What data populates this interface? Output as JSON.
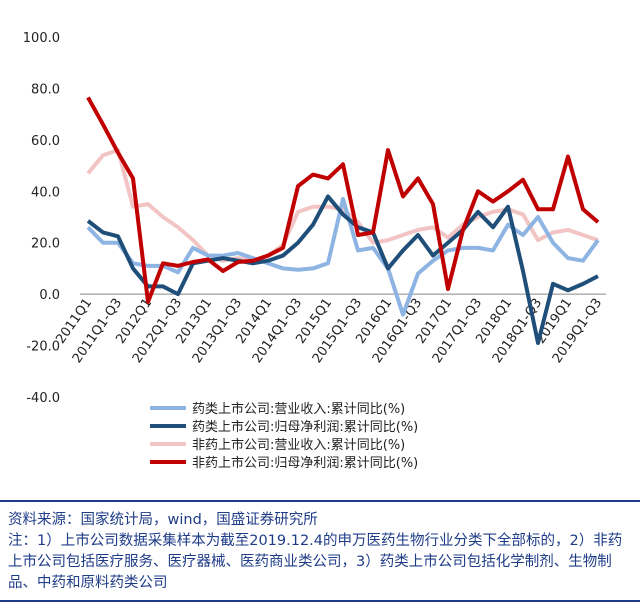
{
  "chart_data": {
    "type": "line",
    "categories": [
      "2011Q1",
      null,
      "2011Q1-Q3",
      null,
      "2012Q1",
      null,
      "2012Q1-Q3",
      null,
      "2013Q1",
      null,
      "2013Q1-Q3",
      null,
      "2014Q1",
      null,
      "2014Q1-Q3",
      null,
      "2015Q1",
      null,
      "2015Q1-Q3",
      null,
      "2016Q1",
      null,
      "2016Q1-Q3",
      null,
      "2017Q1",
      null,
      "2017Q1-Q3",
      null,
      "2018Q1",
      null,
      "2018Q1-Q3",
      null,
      "2019Q1",
      null,
      "2019Q1-Q3"
    ],
    "series": [
      {
        "name": "非药上市公司:营业收入:累计同比(%)",
        "color": "#f2c4c4",
        "values": [
          47,
          54,
          56,
          34,
          35,
          30,
          26,
          21,
          15,
          13,
          14,
          13,
          15,
          19,
          32,
          34,
          34,
          33,
          28,
          20,
          21,
          23,
          25,
          26,
          22,
          27,
          30,
          32,
          33,
          31,
          21,
          24,
          25,
          23,
          21
        ]
      },
      {
        "name": "药类上市公司:营业收入:累计同比(%)",
        "color": "#8db4e2",
        "values": [
          26,
          20,
          20,
          12,
          11,
          11,
          8.5,
          18,
          15,
          15,
          16,
          14,
          12,
          10,
          9.5,
          10,
          12,
          37,
          17,
          18,
          10,
          -8,
          8,
          13,
          17,
          18,
          18,
          17,
          27,
          23,
          30,
          20,
          14,
          13,
          21
        ]
      },
      {
        "name": "药类上市公司:归母净利润:累计同比(%)",
        "color": "#1f4e79",
        "values": [
          28.5,
          24,
          22.5,
          10,
          3,
          3,
          0,
          12,
          13,
          14,
          13,
          12,
          13,
          15,
          20,
          27,
          38,
          31,
          26,
          24,
          10,
          17,
          23,
          15,
          20,
          25,
          32,
          26,
          34,
          9,
          -19,
          4,
          1.5,
          4,
          7
        ]
      },
      {
        "name": "非药上市公司:归母净利润:累计同比(%)",
        "color": "#c00000",
        "values": [
          76.5,
          66,
          55,
          45,
          -3,
          12,
          11,
          12.5,
          13.5,
          9,
          12.5,
          13,
          15,
          18,
          42,
          46.5,
          45,
          50.5,
          23,
          24,
          56,
          38,
          45,
          35,
          2,
          25,
          40,
          36,
          40,
          44.5,
          33,
          33,
          53.5,
          33,
          28
        ]
      }
    ],
    "ylim": [
      -40,
      100
    ],
    "yticks": [
      {
        "value": -40,
        "label": "-40.0"
      },
      {
        "value": -20,
        "label": "-20.0"
      },
      {
        "value": 0,
        "label": "0.0"
      },
      {
        "value": 20,
        "label": "20.0"
      },
      {
        "value": 40,
        "label": "40.0"
      },
      {
        "value": 60,
        "label": "60.0"
      },
      {
        "value": 80,
        "label": "80.0"
      },
      {
        "value": 100,
        "label": "100.0"
      }
    ],
    "legend_position": "bottom",
    "source": "资料来源：国家统计局，wind，国盛证券研究所",
    "note": "注：1）上市公司数据采集样本为截至2019.12.4的申万医药生物行业分类下全部标的，2）非药上市公司包括医疗服务、医疗器械、医药商业类公司，3）药类上市公司包括化学制剂、生物制品、中药和原料药类公司"
  }
}
